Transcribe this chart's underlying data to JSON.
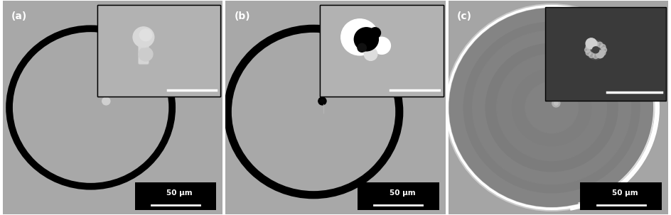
{
  "bg_gray": "#a8a8a8",
  "bg_gray_c": "#a0a0a0",
  "panel_labels": [
    "(a)",
    "(b)",
    "(c)"
  ],
  "scale_text": "50 μm",
  "inset_bg_a": "#b2b2b2",
  "inset_bg_b": "#b2b2b2",
  "inset_bg_c": "#3a3a3a",
  "disk_outer_c": "#888888",
  "disk_inner_c": "#787878",
  "disk_center_c": "#707070",
  "ring_line_color": "#909090",
  "bright_edge_c": "#e0e0e0"
}
